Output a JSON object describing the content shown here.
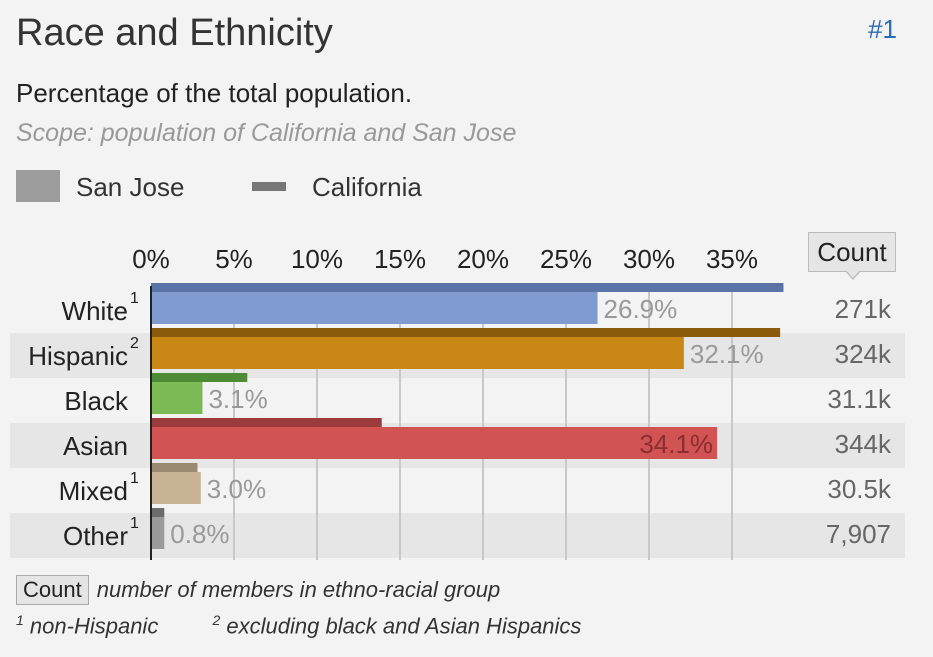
{
  "header": {
    "title": "Race and Ethnicity",
    "rank": "#1",
    "subtitle": "Percentage of the total population.",
    "scope": "Scope: population of California and San Jose"
  },
  "legend": {
    "items": [
      {
        "label": "San Jose"
      },
      {
        "label": "California"
      }
    ]
  },
  "count_header": "Count",
  "footnotes": {
    "count_chip": "Count",
    "count_note": "number of members in ethno-racial group",
    "note1_marker": "1",
    "note1": "non-Hispanic",
    "note2_marker": "2",
    "note2": "excluding black and Asian Hispanics"
  },
  "colors": {
    "white_bar": "#7f9bd0",
    "white_ca": "#5a73a6",
    "hispanic_bar": "#c98816",
    "hispanic_ca": "#8a5b0a",
    "black_bar": "#7cba55",
    "black_ca": "#4d8c35",
    "asian_bar": "#d15353",
    "asian_ca": "#9b3b3b",
    "mixed_bar": "#c8b394",
    "mixed_ca": "#9b8a72",
    "other_bar": "#9a9a9a",
    "other_ca": "#6c6c6c",
    "stripe": "#e6e6e6",
    "grid": "#c8c8c8"
  },
  "chart_data": {
    "type": "bar",
    "orientation": "horizontal",
    "x_ticks": [
      "0%",
      "5%",
      "10%",
      "15%",
      "20%",
      "25%",
      "30%",
      "35%"
    ],
    "xlim": [
      0,
      40
    ],
    "categories": [
      {
        "label": "White",
        "sup": "1"
      },
      {
        "label": "Hispanic",
        "sup": "2"
      },
      {
        "label": "Black",
        "sup": ""
      },
      {
        "label": "Asian",
        "sup": ""
      },
      {
        "label": "Mixed",
        "sup": "1"
      },
      {
        "label": "Other",
        "sup": "1"
      }
    ],
    "series": [
      {
        "name": "San Jose",
        "values": [
          26.9,
          32.1,
          3.1,
          34.1,
          3.0,
          0.8
        ],
        "labels": [
          "26.9%",
          "32.1%",
          "3.1%",
          "34.1%",
          "3.0%",
          "0.8%"
        ]
      },
      {
        "name": "California",
        "values": [
          38.1,
          37.9,
          5.8,
          13.9,
          2.8,
          0.8
        ]
      }
    ],
    "counts": [
      "271k",
      "324k",
      "31.1k",
      "344k",
      "30.5k",
      "7,907"
    ]
  }
}
